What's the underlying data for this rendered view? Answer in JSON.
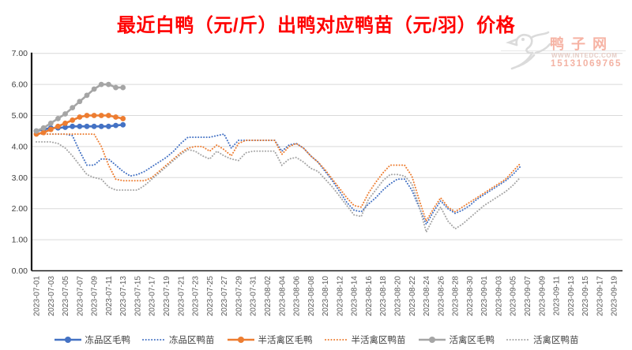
{
  "title": "最近白鸭（元/斤）出鸭对应鸭苗（元/羽）价格",
  "watermark": {
    "site_name": "鸭子网",
    "url": "WWW.INTEDC.COM",
    "phone": "15131069765"
  },
  "colors": {
    "blue": "#4472C4",
    "orange": "#ED7D31",
    "gray": "#A5A5A5",
    "title_red": "#FF0000",
    "grid": "#D9D9D9",
    "axis": "#1A1A1A",
    "x_tick_text": "#595959",
    "y_tick_text": "#404040",
    "watermark_pink": "#F6B3A4"
  },
  "chart_data": {
    "type": "line",
    "title": "最近白鸭（元/斤）出鸭对应鸭苗（元/羽）价格",
    "x_start_date": "2023-07-01",
    "x_step_days": 1,
    "x_tick_labels": [
      "2023-07-01",
      "2023-07-03",
      "2023-07-05",
      "2023-07-07",
      "2023-07-09",
      "2023-07-11",
      "2023-07-13",
      "2023-07-15",
      "2023-07-17",
      "2023-07-19",
      "2023-07-21",
      "2023-07-23",
      "2023-07-25",
      "2023-07-27",
      "2023-07-29",
      "2023-07-31",
      "2023-08-02",
      "2023-08-04",
      "2023-08-06",
      "2023-08-08",
      "2023-08-10",
      "2023-08-12",
      "2023-08-14",
      "2023-08-16",
      "2023-08-18",
      "2023-08-20",
      "2023-08-22",
      "2023-08-24",
      "2023-08-26",
      "2023-08-28",
      "2023-08-30",
      "2023-09-01",
      "2023-09-03",
      "2023-09-05",
      "2023-09-07",
      "2023-09-09",
      "2023-09-11",
      "2023-09-13",
      "2023-09-15",
      "2023-09-17",
      "2023-09-19"
    ],
    "ylim": [
      0,
      7
    ],
    "y_tick_labels": [
      "0.00",
      "1.00",
      "2.00",
      "3.00",
      "4.00",
      "5.00",
      "6.00",
      "7.00"
    ],
    "grid": "horizontal",
    "legend_position": "bottom",
    "series": [
      {
        "name": "冻品区毛鸭",
        "color": "#4472C4",
        "style": "solid-marker",
        "values": [
          4.5,
          4.55,
          4.6,
          4.6,
          4.62,
          4.65,
          4.65,
          4.65,
          4.65,
          4.65,
          4.65,
          4.68,
          4.7
        ]
      },
      {
        "name": "冻品区鸭苗",
        "color": "#4472C4",
        "style": "dotted",
        "values": [
          4.4,
          4.4,
          4.4,
          4.4,
          4.4,
          4.35,
          3.85,
          3.4,
          3.4,
          3.6,
          3.6,
          3.4,
          3.2,
          3.05,
          3.1,
          3.2,
          3.35,
          3.5,
          3.65,
          3.85,
          4.1,
          4.3,
          4.3,
          4.3,
          4.3,
          4.35,
          4.4,
          3.95,
          4.2,
          4.2,
          4.2,
          4.2,
          4.2,
          4.2,
          3.85,
          4.05,
          4.1,
          3.95,
          3.7,
          3.5,
          3.2,
          2.9,
          2.55,
          2.2,
          1.95,
          1.9,
          2.15,
          2.35,
          2.6,
          2.8,
          2.95,
          2.95,
          2.6,
          2.05,
          1.5,
          1.9,
          2.25,
          2.0,
          1.85,
          1.95,
          2.1,
          2.3,
          2.45,
          2.6,
          2.75,
          2.9,
          3.1,
          3.35
        ]
      },
      {
        "name": "半活禽区毛鸭",
        "color": "#ED7D31",
        "style": "solid-marker",
        "values": [
          4.4,
          4.45,
          4.55,
          4.65,
          4.75,
          4.85,
          4.95,
          5.0,
          5.0,
          5.0,
          5.0,
          4.95,
          4.9
        ]
      },
      {
        "name": "半活禽区鸭苗",
        "color": "#ED7D31",
        "style": "dotted",
        "values": [
          4.4,
          4.4,
          4.4,
          4.4,
          4.4,
          4.4,
          4.4,
          4.4,
          4.4,
          4.0,
          3.4,
          2.95,
          2.9,
          2.9,
          2.9,
          2.9,
          3.0,
          3.2,
          3.4,
          3.6,
          3.8,
          3.95,
          4.0,
          4.0,
          3.85,
          4.05,
          3.9,
          3.7,
          4.1,
          4.2,
          4.2,
          4.2,
          4.2,
          4.2,
          3.75,
          4.0,
          4.1,
          3.95,
          3.7,
          3.5,
          3.25,
          2.95,
          2.65,
          2.35,
          2.1,
          2.05,
          2.5,
          2.85,
          3.15,
          3.4,
          3.4,
          3.4,
          3.05,
          2.3,
          1.6,
          2.0,
          2.35,
          2.05,
          1.9,
          2.05,
          2.2,
          2.35,
          2.5,
          2.65,
          2.8,
          2.95,
          3.2,
          3.45
        ]
      },
      {
        "name": "活禽区毛鸭",
        "color": "#A5A5A5",
        "style": "solid-marker",
        "values": [
          4.5,
          4.6,
          4.75,
          4.9,
          5.05,
          5.25,
          5.45,
          5.65,
          5.85,
          6.0,
          6.0,
          5.9,
          5.9
        ]
      },
      {
        "name": "活禽区鸭苗",
        "color": "#A5A5A5",
        "style": "dotted",
        "values": [
          4.15,
          4.15,
          4.15,
          4.1,
          3.95,
          3.7,
          3.4,
          3.1,
          3.0,
          2.95,
          2.7,
          2.6,
          2.6,
          2.6,
          2.6,
          2.75,
          2.95,
          3.15,
          3.35,
          3.55,
          3.75,
          3.9,
          3.85,
          3.7,
          3.6,
          3.85,
          3.7,
          3.6,
          3.55,
          3.8,
          3.85,
          3.85,
          3.85,
          3.85,
          3.4,
          3.6,
          3.65,
          3.5,
          3.3,
          3.2,
          2.95,
          2.7,
          2.4,
          2.1,
          1.8,
          1.75,
          2.3,
          2.6,
          2.9,
          3.1,
          3.1,
          3.05,
          2.8,
          2.1,
          1.25,
          1.7,
          2.05,
          1.6,
          1.35,
          1.5,
          1.7,
          1.9,
          2.1,
          2.25,
          2.4,
          2.55,
          2.75,
          3.0
        ]
      }
    ]
  }
}
